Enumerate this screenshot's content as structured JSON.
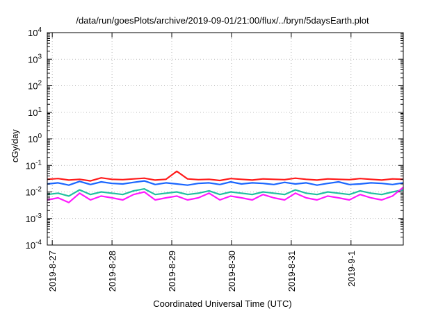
{
  "chart_data": {
    "type": "line",
    "title": "/data/run/goesPlots/archive/2019-09-01/21:00/flux/../bryn/5daysEarth.plot",
    "xlabel": "Coordinated Universal Time (UTC)",
    "ylabel": "cGy/day",
    "yscale": "log",
    "ylim": [
      0.0001,
      10000
    ],
    "yticks": [
      {
        "base": "10",
        "exp": "-4"
      },
      {
        "base": "10",
        "exp": "-3"
      },
      {
        "base": "10",
        "exp": "-2"
      },
      {
        "base": "10",
        "exp": "-1"
      },
      {
        "base": "10",
        "exp": "0"
      },
      {
        "base": "10",
        "exp": "1"
      },
      {
        "base": "10",
        "exp": "2"
      },
      {
        "base": "10",
        "exp": "3"
      },
      {
        "base": "10",
        "exp": "4"
      }
    ],
    "xlim": [
      "2019-08-26 22:00",
      "2019-09-01 21:00"
    ],
    "xticks": [
      "2019-8-27",
      "2019-8-28",
      "2019-8-29",
      "2019-8-30",
      "2019-8-31",
      "2019-9-1"
    ],
    "grid": true,
    "series": [
      {
        "color": "#ff1a1a",
        "values": [
          0.03,
          0.032,
          0.028,
          0.03,
          0.026,
          0.034,
          0.03,
          0.029,
          0.031,
          0.033,
          0.028,
          0.03,
          0.06,
          0.031,
          0.029,
          0.03,
          0.027,
          0.032,
          0.03,
          0.028,
          0.031,
          0.03,
          0.029,
          0.033,
          0.03,
          0.028,
          0.031,
          0.03,
          0.029,
          0.032,
          0.03,
          0.028,
          0.031,
          0.03
        ]
      },
      {
        "color": "#1a66ff",
        "values": [
          0.02,
          0.022,
          0.018,
          0.025,
          0.019,
          0.024,
          0.021,
          0.02,
          0.023,
          0.026,
          0.019,
          0.022,
          0.02,
          0.018,
          0.021,
          0.022,
          0.019,
          0.024,
          0.02,
          0.022,
          0.021,
          0.019,
          0.023,
          0.02,
          0.022,
          0.018,
          0.021,
          0.024,
          0.019,
          0.02,
          0.022,
          0.021,
          0.019,
          0.022
        ]
      },
      {
        "color": "#20c0a0",
        "values": [
          0.008,
          0.009,
          0.007,
          0.012,
          0.008,
          0.01,
          0.009,
          0.008,
          0.011,
          0.013,
          0.008,
          0.009,
          0.01,
          0.008,
          0.009,
          0.011,
          0.008,
          0.01,
          0.009,
          0.008,
          0.01,
          0.009,
          0.008,
          0.012,
          0.009,
          0.008,
          0.01,
          0.009,
          0.008,
          0.011,
          0.009,
          0.008,
          0.01,
          0.012
        ]
      },
      {
        "color": "#ff1aff",
        "values": [
          0.005,
          0.006,
          0.004,
          0.009,
          0.005,
          0.007,
          0.006,
          0.005,
          0.008,
          0.01,
          0.005,
          0.006,
          0.007,
          0.005,
          0.006,
          0.009,
          0.005,
          0.007,
          0.006,
          0.005,
          0.008,
          0.006,
          0.005,
          0.009,
          0.006,
          0.005,
          0.007,
          0.006,
          0.005,
          0.008,
          0.006,
          0.005,
          0.007,
          0.015
        ]
      }
    ]
  }
}
